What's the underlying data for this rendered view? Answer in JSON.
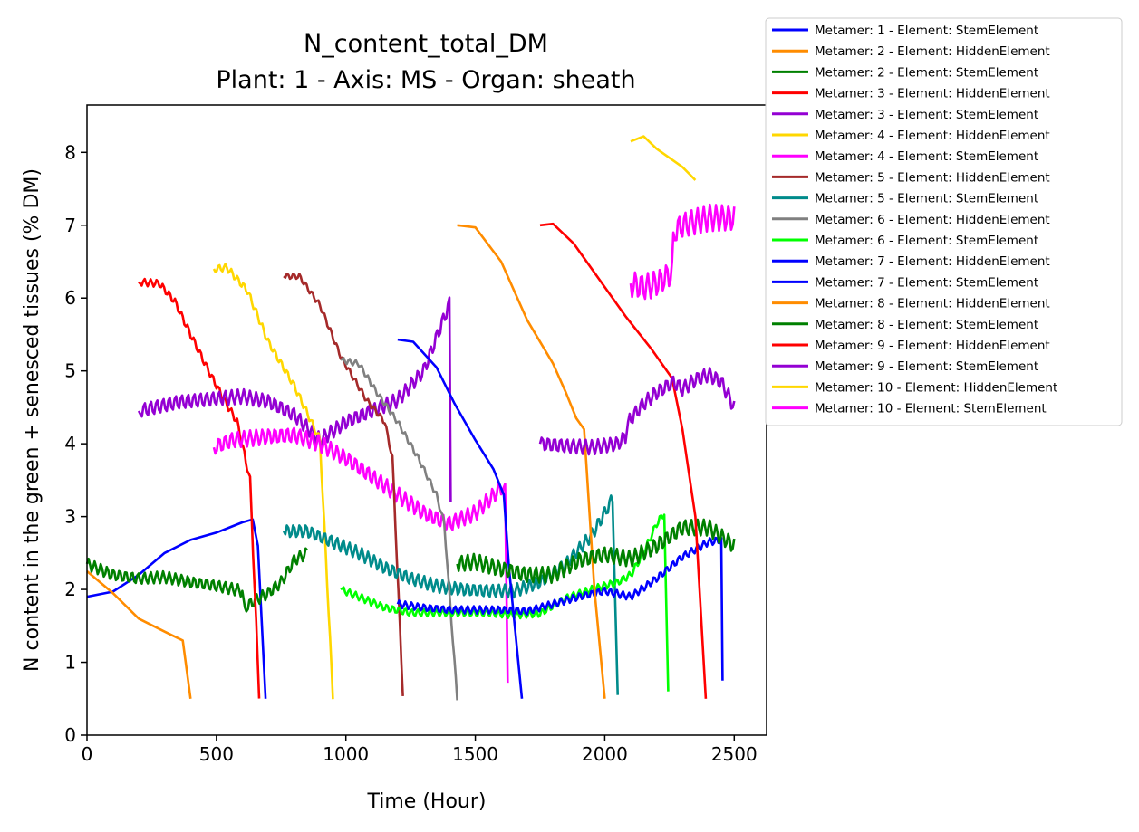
{
  "chart_data": {
    "type": "line",
    "title": "N_content_total_DM",
    "subtitle": "Plant: 1 - Axis: MS - Organ: sheath",
    "xlabel": "Time (Hour)",
    "ylabel": "N content in the green + senesced tissues (% DM)",
    "xlim": [
      0,
      2625
    ],
    "ylim": [
      0,
      8.65
    ],
    "xticks": [
      0,
      500,
      1000,
      1500,
      2000,
      2500
    ],
    "yticks": [
      0,
      1,
      2,
      3,
      4,
      5,
      6,
      7,
      8
    ],
    "grid": false,
    "legend_position": "outside-top-right",
    "series": [
      {
        "name": "Metamer: 1 - Element: StemElement",
        "color": "#0000ff",
        "points": [
          [
            0,
            1.9
          ],
          [
            100,
            1.97
          ],
          [
            200,
            2.2
          ],
          [
            300,
            2.5
          ],
          [
            400,
            2.68
          ],
          [
            500,
            2.78
          ],
          [
            600,
            2.92
          ],
          [
            640,
            2.96
          ],
          [
            660,
            2.6
          ],
          [
            690,
            0.5
          ]
        ]
      },
      {
        "name": "Metamer: 2 - Element: HiddenElement",
        "color": "#ff8c00",
        "points": [
          [
            0,
            2.25
          ],
          [
            100,
            1.95
          ],
          [
            200,
            1.6
          ],
          [
            300,
            1.42
          ],
          [
            370,
            1.3
          ],
          [
            400,
            0.5
          ]
        ]
      },
      {
        "name": "Metamer: 2 - Element: StemElement",
        "color": "#008000",
        "wave": 0.08,
        "period": 24,
        "points": [
          [
            0,
            2.35
          ],
          [
            100,
            2.2
          ],
          [
            200,
            2.15
          ],
          [
            300,
            2.17
          ],
          [
            400,
            2.1
          ],
          [
            500,
            2.05
          ],
          [
            600,
            1.98
          ],
          [
            610,
            1.75
          ],
          [
            650,
            1.85
          ],
          [
            700,
            1.95
          ],
          [
            750,
            2.1
          ],
          [
            800,
            2.4
          ],
          [
            850,
            2.5
          ]
        ]
      },
      {
        "name": "Metamer: 3 - Element: HiddenElement",
        "color": "#ff0000",
        "wave": 0.05,
        "period": 24,
        "points": [
          [
            200,
            6.22
          ],
          [
            280,
            6.2
          ],
          [
            340,
            5.95
          ],
          [
            400,
            5.5
          ],
          [
            470,
            5.0
          ],
          [
            530,
            4.6
          ],
          [
            580,
            4.3
          ],
          [
            630,
            3.5
          ],
          [
            665,
            0.55
          ]
        ]
      },
      {
        "name": "Metamer: 3 - Element: StemElement",
        "color": "#9400d3",
        "wave": 0.1,
        "period": 24,
        "points": [
          [
            200,
            4.45
          ],
          [
            350,
            4.57
          ],
          [
            500,
            4.62
          ],
          [
            600,
            4.65
          ],
          [
            700,
            4.58
          ],
          [
            800,
            4.4
          ],
          [
            900,
            4.05
          ],
          [
            1000,
            4.3
          ],
          [
            1100,
            4.45
          ],
          [
            1200,
            4.6
          ],
          [
            1300,
            5.0
          ],
          [
            1400,
            5.92
          ],
          [
            1405,
            3.2
          ]
        ]
      },
      {
        "name": "Metamer: 4 - Element: HiddenElement",
        "color": "#ffd700",
        "wave": 0.05,
        "period": 24,
        "points": [
          [
            490,
            6.4
          ],
          [
            540,
            6.42
          ],
          [
            620,
            6.1
          ],
          [
            700,
            5.4
          ],
          [
            800,
            4.8
          ],
          [
            900,
            4.05
          ],
          [
            950,
            0.52
          ]
        ]
      },
      {
        "name": "Metamer: 4 - Element: StemElement",
        "color": "#ff00ff",
        "wave": 0.11,
        "period": 24,
        "points": [
          [
            490,
            3.95
          ],
          [
            560,
            4.05
          ],
          [
            700,
            4.1
          ],
          [
            800,
            4.12
          ],
          [
            900,
            4.0
          ],
          [
            1000,
            3.8
          ],
          [
            1100,
            3.55
          ],
          [
            1200,
            3.3
          ],
          [
            1300,
            3.05
          ],
          [
            1400,
            2.9
          ],
          [
            1500,
            3.05
          ],
          [
            1600,
            3.4
          ],
          [
            1615,
            3.45
          ],
          [
            1625,
            0.72
          ]
        ]
      },
      {
        "name": "Metamer: 5 - Element: HiddenElement",
        "color": "#a52a2a",
        "wave": 0.04,
        "period": 24,
        "points": [
          [
            760,
            6.3
          ],
          [
            820,
            6.3
          ],
          [
            900,
            5.9
          ],
          [
            980,
            5.2
          ],
          [
            1080,
            4.6
          ],
          [
            1150,
            4.3
          ],
          [
            1180,
            3.8
          ],
          [
            1220,
            0.57
          ]
        ]
      },
      {
        "name": "Metamer: 5 - Element: StemElement",
        "color": "#008b8b",
        "wave": 0.09,
        "period": 24,
        "points": [
          [
            760,
            2.8
          ],
          [
            850,
            2.8
          ],
          [
            950,
            2.65
          ],
          [
            1050,
            2.5
          ],
          [
            1150,
            2.3
          ],
          [
            1250,
            2.15
          ],
          [
            1350,
            2.05
          ],
          [
            1450,
            2.0
          ],
          [
            1550,
            1.98
          ],
          [
            1650,
            1.98
          ],
          [
            1750,
            2.1
          ],
          [
            1850,
            2.35
          ],
          [
            1950,
            2.75
          ],
          [
            2000,
            3.05
          ],
          [
            2030,
            3.25
          ],
          [
            2050,
            0.55
          ]
        ]
      },
      {
        "name": "Metamer: 6 - Element: HiddenElement",
        "color": "#808080",
        "wave": 0.04,
        "period": 24,
        "points": [
          [
            980,
            5.15
          ],
          [
            1050,
            5.1
          ],
          [
            1120,
            4.7
          ],
          [
            1200,
            4.3
          ],
          [
            1280,
            3.8
          ],
          [
            1350,
            3.3
          ],
          [
            1380,
            2.9
          ],
          [
            1430,
            0.5
          ]
        ]
      },
      {
        "name": "Metamer: 6 - Element: StemElement",
        "color": "#00ff00",
        "wave": 0.05,
        "period": 24,
        "points": [
          [
            980,
            2.0
          ],
          [
            1050,
            1.9
          ],
          [
            1150,
            1.75
          ],
          [
            1250,
            1.68
          ],
          [
            1350,
            1.68
          ],
          [
            1450,
            1.68
          ],
          [
            1550,
            1.68
          ],
          [
            1650,
            1.65
          ],
          [
            1750,
            1.67
          ],
          [
            1850,
            1.88
          ],
          [
            1950,
            2.0
          ],
          [
            2050,
            2.1
          ],
          [
            2100,
            2.2
          ],
          [
            2150,
            2.5
          ],
          [
            2200,
            2.9
          ],
          [
            2230,
            3.05
          ],
          [
            2245,
            0.6
          ]
        ]
      },
      {
        "name": "Metamer: 7 - Element: HiddenElement",
        "color": "#0000ff",
        "points": [
          [
            1200,
            5.43
          ],
          [
            1260,
            5.4
          ],
          [
            1350,
            5.05
          ],
          [
            1420,
            4.55
          ],
          [
            1500,
            4.05
          ],
          [
            1570,
            3.65
          ],
          [
            1610,
            3.3
          ],
          [
            1630,
            2.3
          ],
          [
            1680,
            0.5
          ]
        ]
      },
      {
        "name": "Metamer: 7 - Element: StemElement",
        "color": "#0000ff",
        "wave": 0.05,
        "period": 24,
        "points": [
          [
            1200,
            1.8
          ],
          [
            1300,
            1.75
          ],
          [
            1400,
            1.72
          ],
          [
            1500,
            1.72
          ],
          [
            1600,
            1.72
          ],
          [
            1700,
            1.7
          ],
          [
            1800,
            1.8
          ],
          [
            1900,
            1.9
          ],
          [
            2000,
            1.98
          ],
          [
            2100,
            1.9
          ],
          [
            2200,
            2.15
          ],
          [
            2300,
            2.45
          ],
          [
            2400,
            2.65
          ],
          [
            2450,
            2.68
          ],
          [
            2455,
            0.75
          ]
        ]
      },
      {
        "name": "Metamer: 8 - Element: HiddenElement",
        "color": "#ff8c00",
        "points": [
          [
            1430,
            7.0
          ],
          [
            1500,
            6.97
          ],
          [
            1600,
            6.5
          ],
          [
            1700,
            5.7
          ],
          [
            1800,
            5.1
          ],
          [
            1850,
            4.7
          ],
          [
            1890,
            4.35
          ],
          [
            1920,
            4.2
          ],
          [
            1960,
            2.0
          ],
          [
            2000,
            0.5
          ]
        ]
      },
      {
        "name": "Metamer: 8 - Element: StemElement",
        "color": "#008000",
        "wave": 0.11,
        "period": 24,
        "points": [
          [
            1430,
            2.35
          ],
          [
            1500,
            2.38
          ],
          [
            1600,
            2.28
          ],
          [
            1700,
            2.2
          ],
          [
            1800,
            2.2
          ],
          [
            1900,
            2.4
          ],
          [
            2000,
            2.48
          ],
          [
            2100,
            2.42
          ],
          [
            2200,
            2.6
          ],
          [
            2300,
            2.85
          ],
          [
            2400,
            2.85
          ],
          [
            2500,
            2.6
          ]
        ]
      },
      {
        "name": "Metamer: 9 - Element: HiddenElement",
        "color": "#ff0000",
        "points": [
          [
            1750,
            7.0
          ],
          [
            1800,
            7.02
          ],
          [
            1880,
            6.75
          ],
          [
            1980,
            6.25
          ],
          [
            2080,
            5.75
          ],
          [
            2180,
            5.3
          ],
          [
            2260,
            4.9
          ],
          [
            2300,
            4.2
          ],
          [
            2350,
            3.0
          ],
          [
            2390,
            0.5
          ]
        ]
      },
      {
        "name": "Metamer: 9 - Element: StemElement",
        "color": "#9400d3",
        "wave": 0.1,
        "period": 24,
        "points": [
          [
            1750,
            4.0
          ],
          [
            1850,
            3.97
          ],
          [
            1950,
            3.95
          ],
          [
            2050,
            4.0
          ],
          [
            2080,
            4.1
          ],
          [
            2090,
            4.3
          ],
          [
            2150,
            4.55
          ],
          [
            2200,
            4.7
          ],
          [
            2265,
            4.85
          ],
          [
            2300,
            4.75
          ],
          [
            2350,
            4.88
          ],
          [
            2400,
            4.95
          ],
          [
            2450,
            4.85
          ],
          [
            2500,
            4.5
          ]
        ]
      },
      {
        "name": "Metamer: 10 - Element: HiddenElement",
        "color": "#ffd700",
        "points": [
          [
            2100,
            8.15
          ],
          [
            2150,
            8.22
          ],
          [
            2200,
            8.05
          ],
          [
            2300,
            7.8
          ],
          [
            2350,
            7.62
          ]
        ]
      },
      {
        "name": "Metamer: 10 - Element: StemElement",
        "color": "#ff00ff",
        "wave": 0.18,
        "period": 24,
        "points": [
          [
            2100,
            6.2
          ],
          [
            2150,
            6.15
          ],
          [
            2200,
            6.2
          ],
          [
            2260,
            6.35
          ],
          [
            2265,
            6.9
          ],
          [
            2300,
            7.0
          ],
          [
            2400,
            7.1
          ],
          [
            2500,
            7.1
          ]
        ]
      }
    ]
  }
}
